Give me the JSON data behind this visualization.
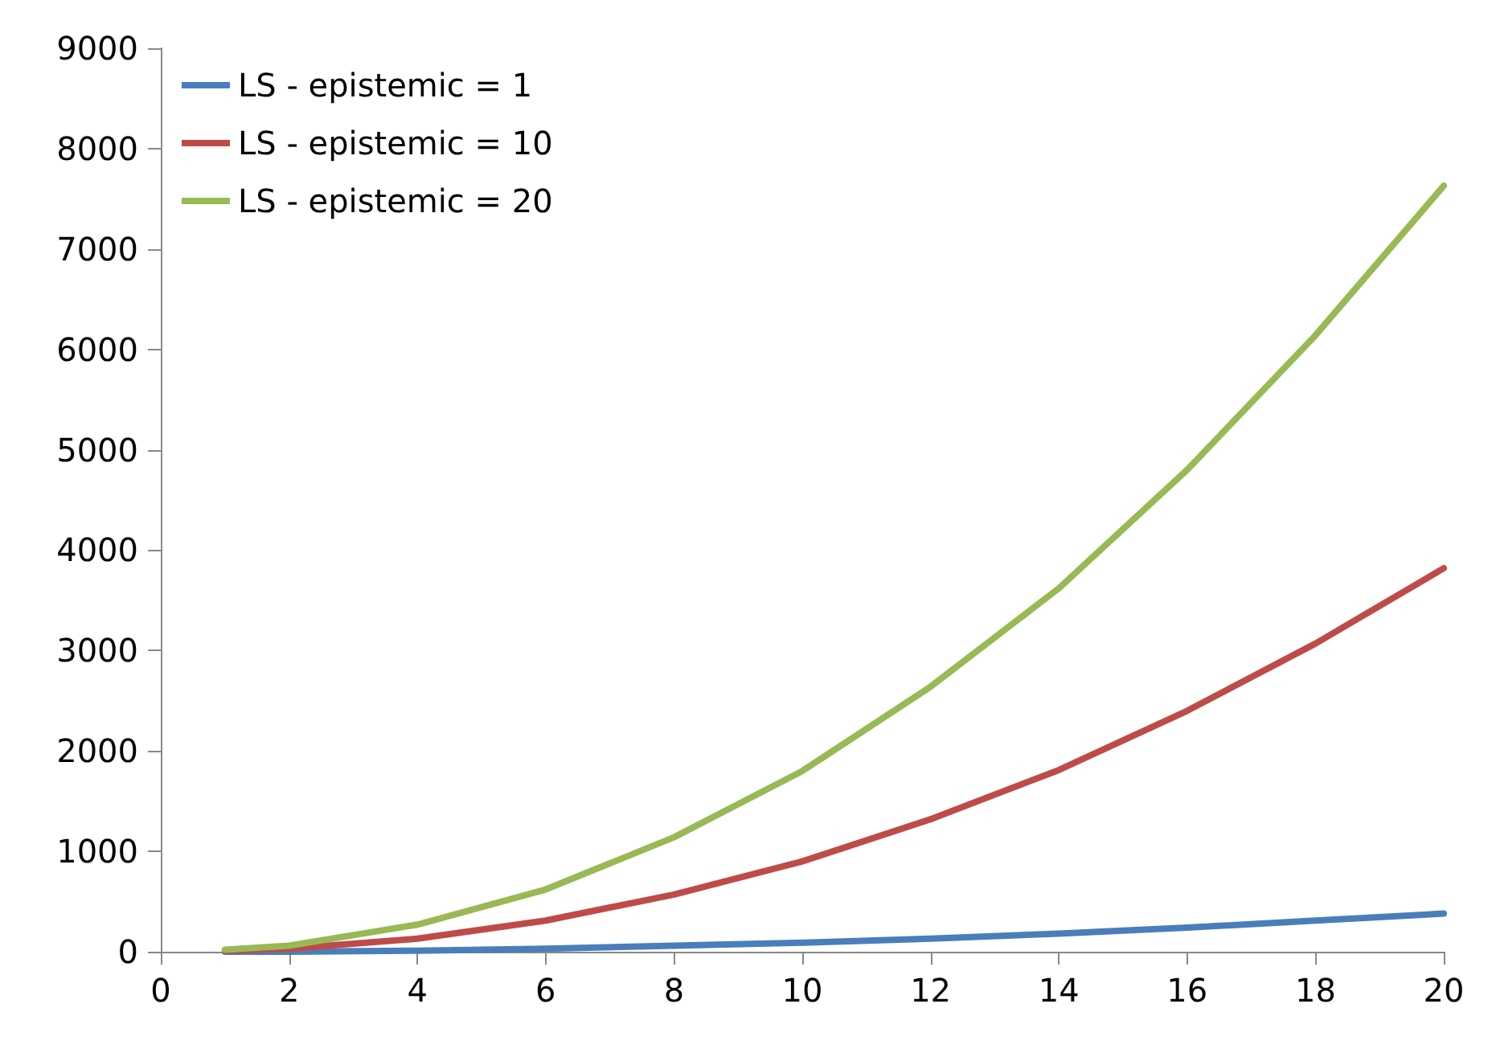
{
  "chart_data": {
    "type": "line",
    "x": [
      1,
      2,
      4,
      6,
      8,
      10,
      12,
      14,
      16,
      18,
      20
    ],
    "series": [
      {
        "name": "LS - epistemic = 1",
        "color": "#4a7ebb",
        "values": [
          0,
          0,
          10,
          30,
          60,
          90,
          130,
          180,
          240,
          310,
          380
        ]
      },
      {
        "name": "LS - epistemic = 10",
        "color": "#be4b48",
        "values": [
          10,
          30,
          130,
          310,
          570,
          900,
          1320,
          1810,
          2400,
          3070,
          3820
        ]
      },
      {
        "name": "LS - epistemic = 20",
        "color": "#98b954",
        "values": [
          20,
          60,
          270,
          620,
          1140,
          1800,
          2640,
          3620,
          4800,
          6140,
          7630
        ]
      }
    ],
    "xlim": [
      0,
      20
    ],
    "xticks": [
      0,
      2,
      4,
      6,
      8,
      10,
      12,
      14,
      16,
      18,
      20
    ],
    "ylim": [
      0,
      9000
    ],
    "yticks": [
      0,
      1000,
      2000,
      3000,
      4000,
      5000,
      6000,
      7000,
      8000,
      9000
    ],
    "grid": false,
    "legend": "top left",
    "marker": "none",
    "line_style": "solid"
  }
}
